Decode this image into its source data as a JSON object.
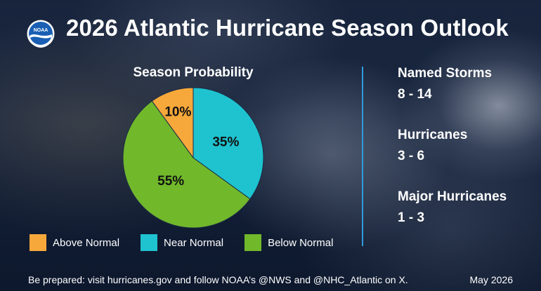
{
  "header": {
    "logo_text": "NOAA",
    "title": "2026 Atlantic Hurricane Season Outlook"
  },
  "chart_data": {
    "type": "pie",
    "title": "Season Probability",
    "categories": [
      "Above Normal",
      "Near Normal",
      "Below Normal"
    ],
    "values": [
      10,
      35,
      55
    ],
    "data_labels": [
      "10%",
      "35%",
      "55%"
    ],
    "colors": [
      "#f7a83a",
      "#1ec3cf",
      "#71b82b"
    ],
    "legend_position": "bottom"
  },
  "stats": [
    {
      "label": "Named Storms",
      "value": "8 - 14"
    },
    {
      "label": "Hurricanes",
      "value": "3 - 6"
    },
    {
      "label": "Major Hurricanes",
      "value": "1 - 3"
    }
  ],
  "footer": {
    "note": "Be prepared: visit hurricanes.gov and follow NOAA’s @NWS and @NHC_Atlantic on X.",
    "date": "May 2026"
  },
  "colors": {
    "divider": "#2f9be0",
    "text": "#ffffff"
  }
}
